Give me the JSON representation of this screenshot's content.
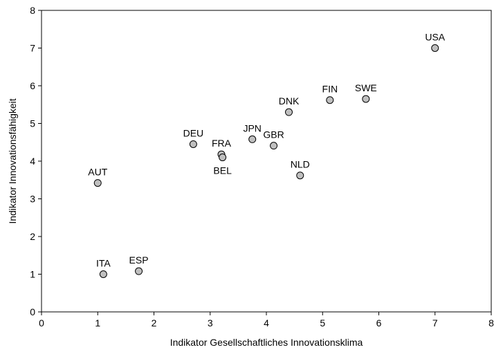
{
  "chart_data": {
    "type": "scatter",
    "title": "",
    "xlabel": "Indikator Gesellschaftliches Innovationsklima",
    "ylabel": "Indikator Innovationsfähigkeit",
    "xlim": [
      0,
      8
    ],
    "ylim": [
      0,
      8
    ],
    "x_ticks": [
      "0",
      "1",
      "2",
      "3",
      "4",
      "5",
      "6",
      "7",
      "8"
    ],
    "y_ticks": [
      "0",
      "1",
      "2",
      "3",
      "4",
      "5",
      "6",
      "7",
      "8"
    ],
    "grid": false,
    "legend": "none",
    "marker_fill": "#bfbfbf",
    "marker_stroke": "#000000",
    "points": [
      {
        "label": "USA",
        "x": 7.0,
        "y": 7.0,
        "label_pos": "above"
      },
      {
        "label": "SWE",
        "x": 5.77,
        "y": 5.65,
        "label_pos": "above"
      },
      {
        "label": "FIN",
        "x": 5.13,
        "y": 5.62,
        "label_pos": "above"
      },
      {
        "label": "DNK",
        "x": 4.4,
        "y": 5.3,
        "label_pos": "above"
      },
      {
        "label": "JPN",
        "x": 3.75,
        "y": 4.58,
        "label_pos": "above"
      },
      {
        "label": "GBR",
        "x": 4.13,
        "y": 4.41,
        "label_pos": "above"
      },
      {
        "label": "DEU",
        "x": 2.7,
        "y": 4.45,
        "label_pos": "above"
      },
      {
        "label": "FRA",
        "x": 3.2,
        "y": 4.18,
        "label_pos": "above"
      },
      {
        "label": "BEL",
        "x": 3.22,
        "y": 4.1,
        "label_pos": "below"
      },
      {
        "label": "NLD",
        "x": 4.6,
        "y": 3.62,
        "label_pos": "above"
      },
      {
        "label": "AUT",
        "x": 1.0,
        "y": 3.42,
        "label_pos": "above"
      },
      {
        "label": "ESP",
        "x": 1.73,
        "y": 1.08,
        "label_pos": "above"
      },
      {
        "label": "ITA",
        "x": 1.1,
        "y": 1.0,
        "label_pos": "above"
      }
    ]
  }
}
